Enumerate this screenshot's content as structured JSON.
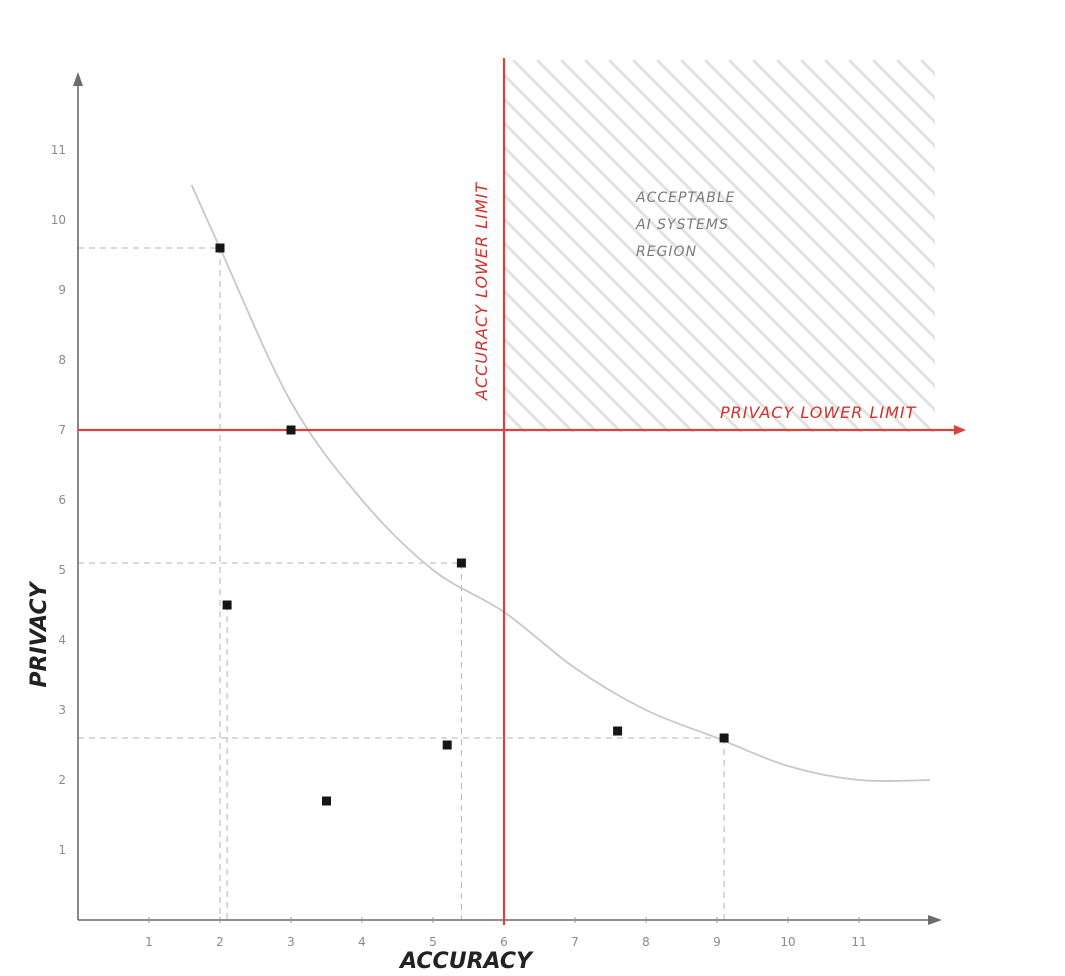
{
  "chart_data": {
    "type": "scatter",
    "title": "",
    "xlabel": "ACCURACY",
    "ylabel": "PRIVACY",
    "xlim": [
      0,
      12
    ],
    "ylim": [
      0,
      12
    ],
    "x_ticks": [
      "1",
      "2",
      "3",
      "4",
      "5",
      "6",
      "7",
      "8",
      "9",
      "10",
      "11"
    ],
    "y_ticks": [
      "1",
      "2",
      "3",
      "4",
      "5",
      "6",
      "7",
      "8",
      "9",
      "10",
      "11"
    ],
    "points": [
      {
        "x": 2.0,
        "y": 9.6
      },
      {
        "x": 3.0,
        "y": 7.0
      },
      {
        "x": 5.4,
        "y": 5.1
      },
      {
        "x": 2.1,
        "y": 4.5
      },
      {
        "x": 5.2,
        "y": 2.5
      },
      {
        "x": 7.6,
        "y": 2.7
      },
      {
        "x": 9.1,
        "y": 2.6
      },
      {
        "x": 3.5,
        "y": 1.7
      }
    ],
    "frontier_curve": [
      {
        "x": 1.6,
        "y": 10.5
      },
      {
        "x": 2.0,
        "y": 9.6
      },
      {
        "x": 3.0,
        "y": 7.4
      },
      {
        "x": 4.0,
        "y": 6.0
      },
      {
        "x": 5.0,
        "y": 5.0
      },
      {
        "x": 6.0,
        "y": 4.4
      },
      {
        "x": 7.0,
        "y": 3.6
      },
      {
        "x": 8.0,
        "y": 3.0
      },
      {
        "x": 9.0,
        "y": 2.6
      },
      {
        "x": 10.0,
        "y": 2.2
      },
      {
        "x": 11.0,
        "y": 2.0
      },
      {
        "x": 12.0,
        "y": 2.0
      }
    ],
    "accuracy_lower_limit": 6,
    "privacy_lower_limit": 7,
    "grid": false,
    "legend": "none"
  },
  "labels": {
    "accuracy_limit": "ACCURACY LOWER LIMIT",
    "privacy_limit": "PRIVACY LOWER LIMIT",
    "region_line1": "ACCEPTABLE",
    "region_line2": "AI SYSTEMS",
    "region_line3": "REGION"
  },
  "colors": {
    "limit_lines": "#d9433d",
    "points": "#161616",
    "frontier": "#c8c8c8",
    "hatch": "#e2e2e2"
  }
}
